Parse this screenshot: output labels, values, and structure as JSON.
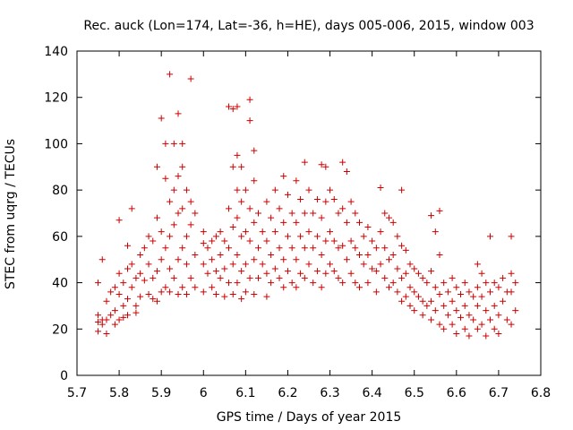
{
  "chart_data": {
    "type": "scatter",
    "title": "Rec. auck (Lon=174, Lat=-36, h=HE), days 005-006, 2015, window 003",
    "xlabel": "GPS time / Days of year 2015",
    "ylabel": "STEC from uqrg / TECUs",
    "xlim": [
      5.7,
      6.8
    ],
    "ylim": [
      0,
      140
    ],
    "xticks": [
      "5.7",
      "5.8",
      "5.9",
      "6",
      "6.1",
      "6.2",
      "6.3",
      "6.4",
      "6.5",
      "6.6",
      "6.7",
      "6.8"
    ],
    "yticks": [
      "0",
      "20",
      "40",
      "60",
      "80",
      "100",
      "120",
      "140"
    ],
    "grid": false,
    "marker": "+",
    "color": "#cc0000",
    "series": [
      {
        "points": [
          [
            5.75,
            40
          ],
          [
            5.75,
            26
          ],
          [
            5.75,
            23
          ],
          [
            5.75,
            19
          ],
          [
            5.76,
            50
          ],
          [
            5.76,
            24
          ],
          [
            5.76,
            22
          ],
          [
            5.77,
            32
          ],
          [
            5.77,
            24
          ],
          [
            5.77,
            18
          ],
          [
            5.78,
            36
          ],
          [
            5.78,
            26
          ],
          [
            5.79,
            38
          ],
          [
            5.79,
            28
          ],
          [
            5.79,
            22
          ],
          [
            5.8,
            67
          ],
          [
            5.8,
            44
          ],
          [
            5.8,
            35
          ],
          [
            5.8,
            24
          ],
          [
            5.81,
            40
          ],
          [
            5.81,
            30
          ],
          [
            5.81,
            25
          ],
          [
            5.82,
            56
          ],
          [
            5.82,
            46
          ],
          [
            5.82,
            33
          ],
          [
            5.82,
            26
          ],
          [
            5.83,
            72
          ],
          [
            5.83,
            48
          ],
          [
            5.83,
            38
          ],
          [
            5.84,
            42
          ],
          [
            5.84,
            30
          ],
          [
            5.84,
            27
          ],
          [
            5.85,
            52
          ],
          [
            5.85,
            44
          ],
          [
            5.85,
            34
          ],
          [
            5.86,
            55
          ],
          [
            5.86,
            41
          ],
          [
            5.87,
            60
          ],
          [
            5.87,
            48
          ],
          [
            5.87,
            35
          ],
          [
            5.88,
            58
          ],
          [
            5.88,
            42
          ],
          [
            5.88,
            33
          ],
          [
            5.89,
            90
          ],
          [
            5.89,
            68
          ],
          [
            5.89,
            45
          ],
          [
            5.89,
            32
          ],
          [
            5.9,
            111
          ],
          [
            5.9,
            62
          ],
          [
            5.9,
            50
          ],
          [
            5.9,
            36
          ],
          [
            5.91,
            100
          ],
          [
            5.91,
            85
          ],
          [
            5.91,
            55
          ],
          [
            5.91,
            38
          ],
          [
            5.92,
            130
          ],
          [
            5.92,
            75
          ],
          [
            5.92,
            60
          ],
          [
            5.92,
            46
          ],
          [
            5.92,
            36
          ],
          [
            5.93,
            100
          ],
          [
            5.93,
            80
          ],
          [
            5.93,
            65
          ],
          [
            5.93,
            42
          ],
          [
            5.94,
            113
          ],
          [
            5.94,
            86
          ],
          [
            5.94,
            70
          ],
          [
            5.94,
            50
          ],
          [
            5.94,
            35
          ],
          [
            5.95,
            100
          ],
          [
            5.95,
            90
          ],
          [
            5.95,
            72
          ],
          [
            5.95,
            55
          ],
          [
            5.95,
            38
          ],
          [
            5.96,
            80
          ],
          [
            5.96,
            60
          ],
          [
            5.96,
            48
          ],
          [
            5.96,
            35
          ],
          [
            5.97,
            128
          ],
          [
            5.97,
            75
          ],
          [
            5.97,
            65
          ],
          [
            5.97,
            42
          ],
          [
            5.98,
            70
          ],
          [
            5.98,
            52
          ],
          [
            5.98,
            38
          ],
          [
            6.0,
            62
          ],
          [
            6.0,
            57
          ],
          [
            6.0,
            48
          ],
          [
            6.0,
            36
          ],
          [
            6.01,
            55
          ],
          [
            6.01,
            44
          ],
          [
            6.02,
            58
          ],
          [
            6.02,
            50
          ],
          [
            6.02,
            38
          ],
          [
            6.03,
            60
          ],
          [
            6.03,
            45
          ],
          [
            6.03,
            35
          ],
          [
            6.04,
            62
          ],
          [
            6.04,
            52
          ],
          [
            6.04,
            42
          ],
          [
            6.05,
            58
          ],
          [
            6.05,
            46
          ],
          [
            6.05,
            34
          ],
          [
            6.06,
            116
          ],
          [
            6.06,
            72
          ],
          [
            6.06,
            55
          ],
          [
            6.06,
            40
          ],
          [
            6.07,
            115
          ],
          [
            6.07,
            90
          ],
          [
            6.07,
            64
          ],
          [
            6.07,
            48
          ],
          [
            6.07,
            35
          ],
          [
            6.08,
            116
          ],
          [
            6.08,
            95
          ],
          [
            6.08,
            80
          ],
          [
            6.08,
            68
          ],
          [
            6.08,
            52
          ],
          [
            6.08,
            40
          ],
          [
            6.09,
            90
          ],
          [
            6.09,
            75
          ],
          [
            6.09,
            60
          ],
          [
            6.09,
            45
          ],
          [
            6.09,
            33
          ],
          [
            6.1,
            80
          ],
          [
            6.1,
            62
          ],
          [
            6.1,
            48
          ],
          [
            6.1,
            36
          ],
          [
            6.11,
            119
          ],
          [
            6.11,
            110
          ],
          [
            6.11,
            72
          ],
          [
            6.11,
            58
          ],
          [
            6.11,
            42
          ],
          [
            6.12,
            97
          ],
          [
            6.12,
            84
          ],
          [
            6.12,
            66
          ],
          [
            6.12,
            50
          ],
          [
            6.12,
            35
          ],
          [
            6.13,
            70
          ],
          [
            6.13,
            55
          ],
          [
            6.13,
            42
          ],
          [
            6.14,
            62
          ],
          [
            6.14,
            48
          ],
          [
            6.15,
            75
          ],
          [
            6.15,
            58
          ],
          [
            6.15,
            44
          ],
          [
            6.15,
            34
          ],
          [
            6.16,
            68
          ],
          [
            6.16,
            52
          ],
          [
            6.16,
            40
          ],
          [
            6.17,
            80
          ],
          [
            6.17,
            62
          ],
          [
            6.17,
            46
          ],
          [
            6.18,
            72
          ],
          [
            6.18,
            55
          ],
          [
            6.18,
            42
          ],
          [
            6.19,
            86
          ],
          [
            6.19,
            66
          ],
          [
            6.19,
            50
          ],
          [
            6.19,
            38
          ],
          [
            6.2,
            78
          ],
          [
            6.2,
            60
          ],
          [
            6.2,
            45
          ],
          [
            6.21,
            70
          ],
          [
            6.21,
            55
          ],
          [
            6.21,
            40
          ],
          [
            6.22,
            84
          ],
          [
            6.22,
            66
          ],
          [
            6.22,
            50
          ],
          [
            6.22,
            38
          ],
          [
            6.23,
            76
          ],
          [
            6.23,
            60
          ],
          [
            6.23,
            44
          ],
          [
            6.24,
            92
          ],
          [
            6.24,
            70
          ],
          [
            6.24,
            55
          ],
          [
            6.24,
            42
          ],
          [
            6.25,
            80
          ],
          [
            6.25,
            62
          ],
          [
            6.25,
            48
          ],
          [
            6.26,
            70
          ],
          [
            6.26,
            55
          ],
          [
            6.26,
            40
          ],
          [
            6.27,
            76
          ],
          [
            6.27,
            60
          ],
          [
            6.27,
            45
          ],
          [
            6.28,
            91
          ],
          [
            6.28,
            68
          ],
          [
            6.28,
            52
          ],
          [
            6.28,
            38
          ],
          [
            6.29,
            90
          ],
          [
            6.29,
            75
          ],
          [
            6.29,
            58
          ],
          [
            6.29,
            44
          ],
          [
            6.3,
            80
          ],
          [
            6.3,
            62
          ],
          [
            6.3,
            48
          ],
          [
            6.31,
            76
          ],
          [
            6.31,
            58
          ],
          [
            6.31,
            45
          ],
          [
            6.32,
            70
          ],
          [
            6.32,
            55
          ],
          [
            6.32,
            42
          ],
          [
            6.33,
            92
          ],
          [
            6.33,
            72
          ],
          [
            6.33,
            56
          ],
          [
            6.33,
            40
          ],
          [
            6.34,
            88
          ],
          [
            6.34,
            66
          ],
          [
            6.34,
            50
          ],
          [
            6.35,
            75
          ],
          [
            6.35,
            58
          ],
          [
            6.35,
            44
          ],
          [
            6.36,
            70
          ],
          [
            6.36,
            55
          ],
          [
            6.36,
            40
          ],
          [
            6.37,
            66
          ],
          [
            6.37,
            52
          ],
          [
            6.37,
            38
          ],
          [
            6.38,
            60
          ],
          [
            6.38,
            48
          ],
          [
            6.39,
            64
          ],
          [
            6.39,
            52
          ],
          [
            6.39,
            40
          ],
          [
            6.4,
            58
          ],
          [
            6.4,
            46
          ],
          [
            6.41,
            55
          ],
          [
            6.41,
            45
          ],
          [
            6.41,
            36
          ],
          [
            6.42,
            81
          ],
          [
            6.42,
            62
          ],
          [
            6.42,
            48
          ],
          [
            6.43,
            70
          ],
          [
            6.43,
            55
          ],
          [
            6.43,
            42
          ],
          [
            6.44,
            68
          ],
          [
            6.44,
            50
          ],
          [
            6.44,
            38
          ],
          [
            6.45,
            66
          ],
          [
            6.45,
            52
          ],
          [
            6.45,
            40
          ],
          [
            6.46,
            60
          ],
          [
            6.46,
            46
          ],
          [
            6.46,
            36
          ],
          [
            6.47,
            80
          ],
          [
            6.47,
            56
          ],
          [
            6.47,
            42
          ],
          [
            6.47,
            32
          ],
          [
            6.48,
            54
          ],
          [
            6.48,
            44
          ],
          [
            6.48,
            34
          ],
          [
            6.49,
            48
          ],
          [
            6.49,
            38
          ],
          [
            6.49,
            30
          ],
          [
            6.5,
            46
          ],
          [
            6.5,
            36
          ],
          [
            6.5,
            28
          ],
          [
            6.51,
            44
          ],
          [
            6.51,
            34
          ],
          [
            6.52,
            42
          ],
          [
            6.52,
            32
          ],
          [
            6.52,
            26
          ],
          [
            6.53,
            40
          ],
          [
            6.53,
            30
          ],
          [
            6.54,
            69
          ],
          [
            6.54,
            45
          ],
          [
            6.54,
            32
          ],
          [
            6.54,
            24
          ],
          [
            6.55,
            62
          ],
          [
            6.55,
            38
          ],
          [
            6.55,
            28
          ],
          [
            6.56,
            71
          ],
          [
            6.56,
            52
          ],
          [
            6.56,
            35
          ],
          [
            6.56,
            22
          ],
          [
            6.57,
            40
          ],
          [
            6.57,
            30
          ],
          [
            6.57,
            20
          ],
          [
            6.58,
            36
          ],
          [
            6.58,
            26
          ],
          [
            6.59,
            42
          ],
          [
            6.59,
            32
          ],
          [
            6.59,
            22
          ],
          [
            6.6,
            38
          ],
          [
            6.6,
            28
          ],
          [
            6.6,
            18
          ],
          [
            6.61,
            35
          ],
          [
            6.61,
            25
          ],
          [
            6.62,
            40
          ],
          [
            6.62,
            30
          ],
          [
            6.62,
            20
          ],
          [
            6.63,
            36
          ],
          [
            6.63,
            26
          ],
          [
            6.63,
            17
          ],
          [
            6.64,
            34
          ],
          [
            6.64,
            24
          ],
          [
            6.65,
            48
          ],
          [
            6.65,
            38
          ],
          [
            6.65,
            30
          ],
          [
            6.65,
            20
          ],
          [
            6.66,
            44
          ],
          [
            6.66,
            34
          ],
          [
            6.66,
            22
          ],
          [
            6.67,
            40
          ],
          [
            6.67,
            28
          ],
          [
            6.67,
            17
          ],
          [
            6.68,
            60
          ],
          [
            6.68,
            36
          ],
          [
            6.68,
            24
          ],
          [
            6.69,
            40
          ],
          [
            6.69,
            30
          ],
          [
            6.69,
            20
          ],
          [
            6.7,
            38
          ],
          [
            6.7,
            26
          ],
          [
            6.7,
            18
          ],
          [
            6.71,
            42
          ],
          [
            6.71,
            32
          ],
          [
            6.72,
            36
          ],
          [
            6.72,
            24
          ],
          [
            6.73,
            60
          ],
          [
            6.73,
            44
          ],
          [
            6.73,
            36
          ],
          [
            6.73,
            22
          ],
          [
            6.74,
            40
          ],
          [
            6.74,
            28
          ]
        ]
      }
    ]
  }
}
